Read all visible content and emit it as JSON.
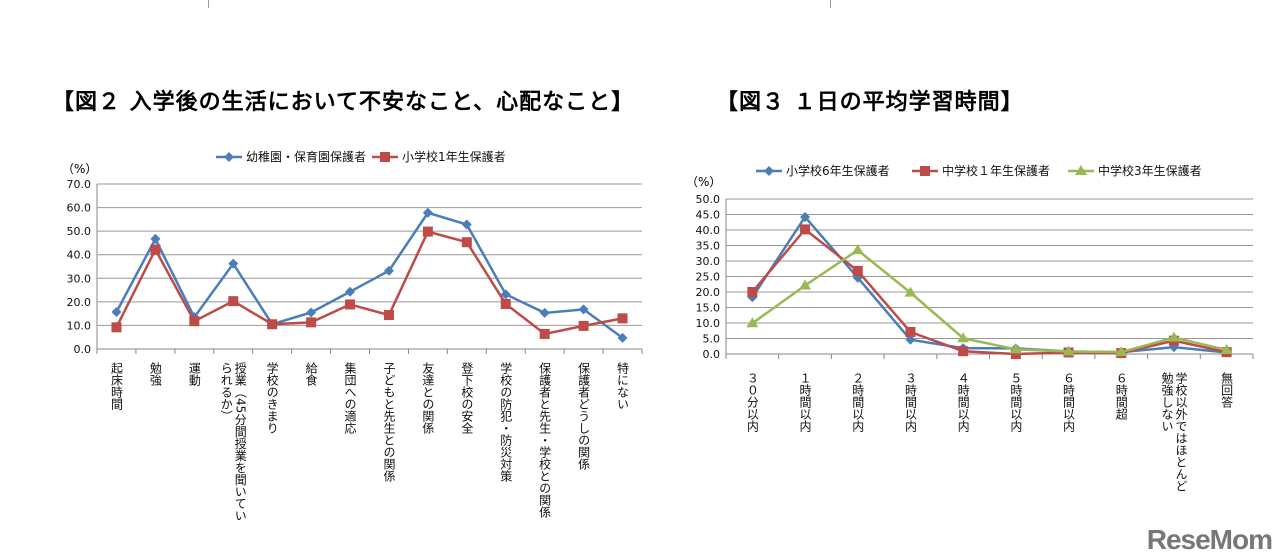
{
  "chart_data": [
    {
      "type": "line",
      "title": "【図２ 入学後の生活において不安なこと、心配なこと】",
      "ylabel": "（%）",
      "ylim": [
        0,
        70
      ],
      "yticks": [
        "0.0",
        "10.0",
        "20.0",
        "30.0",
        "40.0",
        "50.0",
        "60.0",
        "70.0"
      ],
      "grid": true,
      "legend": "top",
      "categories": [
        "起床時間",
        "勉強",
        "運動",
        "授業（45分間授業を聞いてい\nられるか）",
        "学校のきまり",
        "給食",
        "集団への適応",
        "子どもと先生との関係",
        "友達との関係",
        "登下校の安全",
        "学校の防犯・防災対策",
        "保護者と先生・学校との関係",
        "保護者どうしの関係",
        "特にない"
      ],
      "series": [
        {
          "name": "幼稚園・保育園保護者",
          "color": "#4a7ebb",
          "marker": "diamond",
          "values": [
            15.7,
            46.7,
            13.5,
            36.2,
            10.5,
            15.5,
            24.3,
            33.2,
            57.8,
            52.8,
            23.2,
            15.3,
            16.8,
            4.7
          ]
        },
        {
          "name": "小学校1年生保護者",
          "color": "#be4b48",
          "marker": "square",
          "values": [
            9.2,
            42.2,
            11.8,
            20.3,
            10.5,
            11.3,
            18.9,
            14.4,
            49.8,
            45.3,
            19.1,
            6.4,
            9.8,
            13.0
          ]
        }
      ]
    },
    {
      "type": "line",
      "title": "【図３ １日の平均学習時間】",
      "ylabel": "（%）",
      "ylim": [
        0,
        50
      ],
      "yticks": [
        "0.0",
        "5.0",
        "10.0",
        "15.0",
        "20.0",
        "25.0",
        "30.0",
        "35.0",
        "40.0",
        "45.0",
        "50.0"
      ],
      "grid": true,
      "legend": "top",
      "categories": [
        "３０分以内",
        "１時間以内",
        "２時間以内",
        "３時間以内",
        "４時間以内",
        "５時間以内",
        "６時間以内",
        "６時間超",
        "学校以外ではほとんど\n勉強しない",
        "無回答"
      ],
      "series": [
        {
          "name": "小学校6年生保護者",
          "color": "#4a7ebb",
          "marker": "diamond",
          "values": [
            18.3,
            44.2,
            24.6,
            4.6,
            1.9,
            1.8,
            0.8,
            0.6,
            2.2,
            0.5
          ]
        },
        {
          "name": "中学校１年生保護者",
          "color": "#be4b48",
          "marker": "square",
          "values": [
            20.0,
            40.2,
            26.8,
            7.1,
            0.9,
            0.0,
            0.5,
            0.3,
            4.3,
            0.6
          ]
        },
        {
          "name": "中学校3年生保護者",
          "color": "#98b954",
          "marker": "triangle",
          "values": [
            9.9,
            22.1,
            33.5,
            19.8,
            5.1,
            1.5,
            0.8,
            0.6,
            5.3,
            1.3
          ]
        }
      ]
    }
  ],
  "watermark": "ReseMom"
}
